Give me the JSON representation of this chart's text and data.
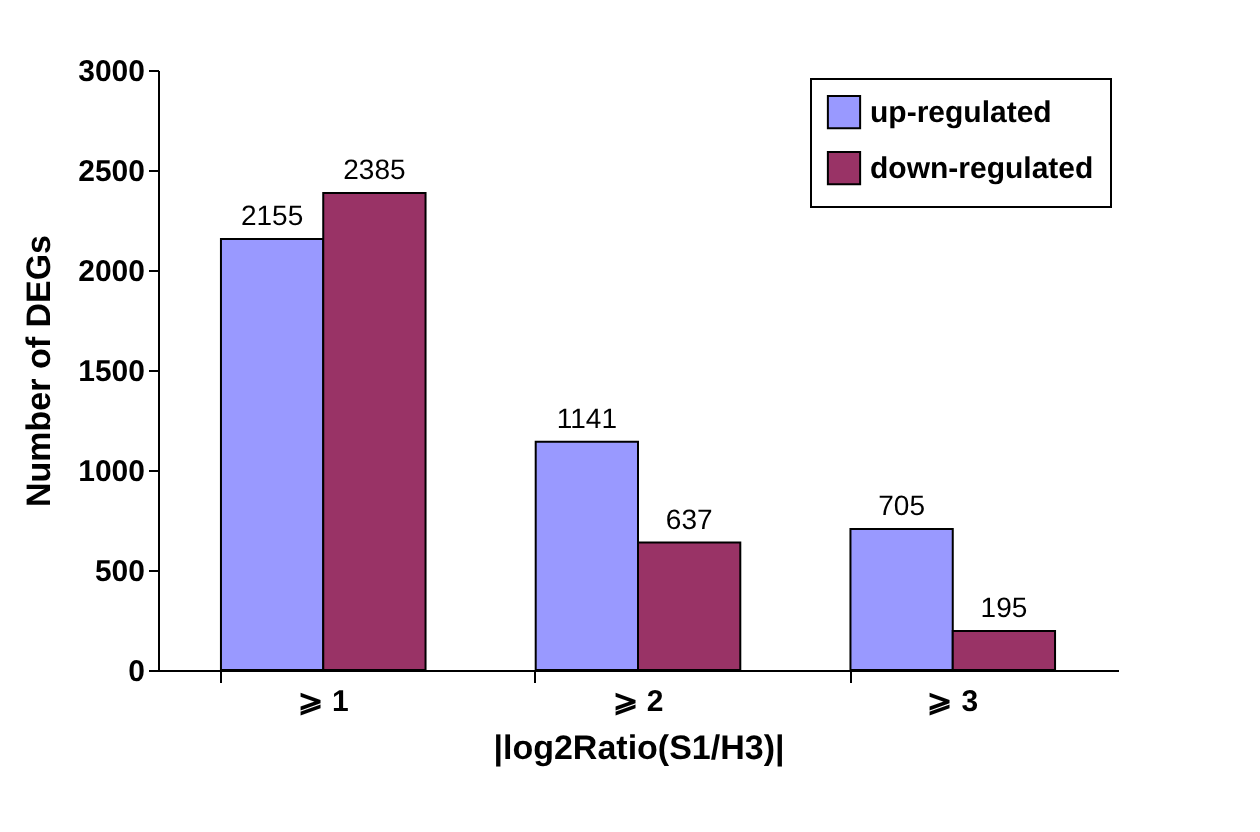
{
  "chart_data": {
    "type": "bar",
    "xlabel": "|log2Ratio(S1/H3)|",
    "ylabel": "Number of DEGs",
    "categories": [
      "⩾ 1",
      "⩾ 2",
      "⩾ 3"
    ],
    "series": [
      {
        "name": "up-regulated",
        "color": "#9999ff",
        "values": [
          2155,
          1141,
          705
        ]
      },
      {
        "name": "down-regulated",
        "color": "#993366",
        "values": [
          2385,
          637,
          195
        ]
      }
    ],
    "ylim": [
      0,
      3000
    ],
    "yticks": [
      0,
      500,
      1000,
      1500,
      2000,
      2500,
      3000
    ],
    "grid": false,
    "legend": "top right",
    "data_labels": true
  }
}
